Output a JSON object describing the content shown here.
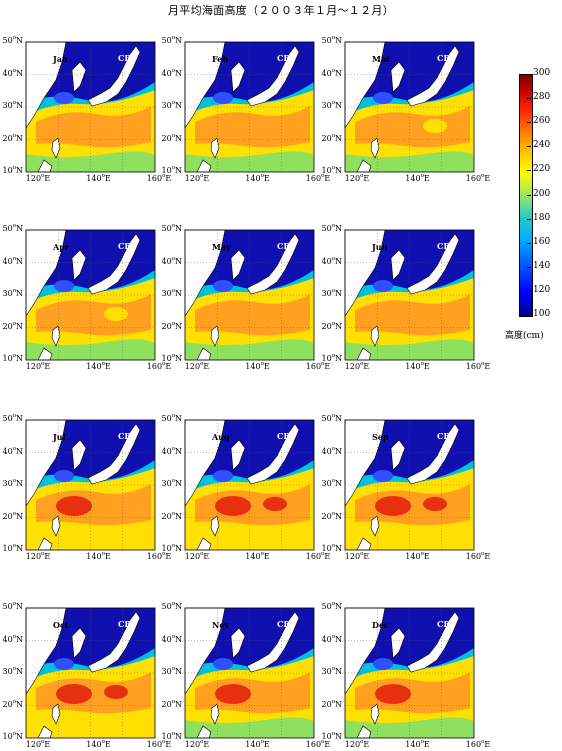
{
  "title": "月平均海面高度（２００３年１月～１２月）",
  "map_label": "CRI",
  "lat_labels": [
    "10",
    "20",
    "30",
    "40",
    "50"
  ],
  "lat_suffix": "N",
  "lon_labels": [
    "120",
    "140",
    "160"
  ],
  "lon_suffix": "E",
  "panels": [
    {
      "month": "Jan",
      "peak": 255,
      "south": 210
    },
    {
      "month": "Feb",
      "peak": 250,
      "south": 205
    },
    {
      "month": "Mar",
      "peak": 245,
      "south": 205
    },
    {
      "month": "Apr",
      "peak": 245,
      "south": 210
    },
    {
      "month": "May",
      "peak": 250,
      "south": 215
    },
    {
      "month": "Jun",
      "peak": 255,
      "south": 220
    },
    {
      "month": "Jul",
      "peak": 265,
      "south": 225
    },
    {
      "month": "Aug",
      "peak": 275,
      "south": 230
    },
    {
      "month": "Sep",
      "peak": 275,
      "south": 230
    },
    {
      "month": "Oct",
      "peak": 270,
      "south": 225
    },
    {
      "month": "Nov",
      "peak": 265,
      "south": 220
    },
    {
      "month": "Dec",
      "peak": 260,
      "south": 215
    }
  ],
  "colorbar": {
    "ticks": [
      "300",
      "280",
      "260",
      "240",
      "220",
      "200",
      "180",
      "160",
      "140",
      "120",
      "100"
    ],
    "min": 100,
    "max": 300,
    "unit": "高度(cm)"
  },
  "colors": {
    "deep_blue": "#1010b0",
    "blue": "#3050ff",
    "cyan": "#00c0e0",
    "green": "#90e060",
    "yellow": "#ffe000",
    "orange": "#ffa020",
    "red": "#e83010",
    "dark_red": "#b00000",
    "land": "#ffffff"
  }
}
